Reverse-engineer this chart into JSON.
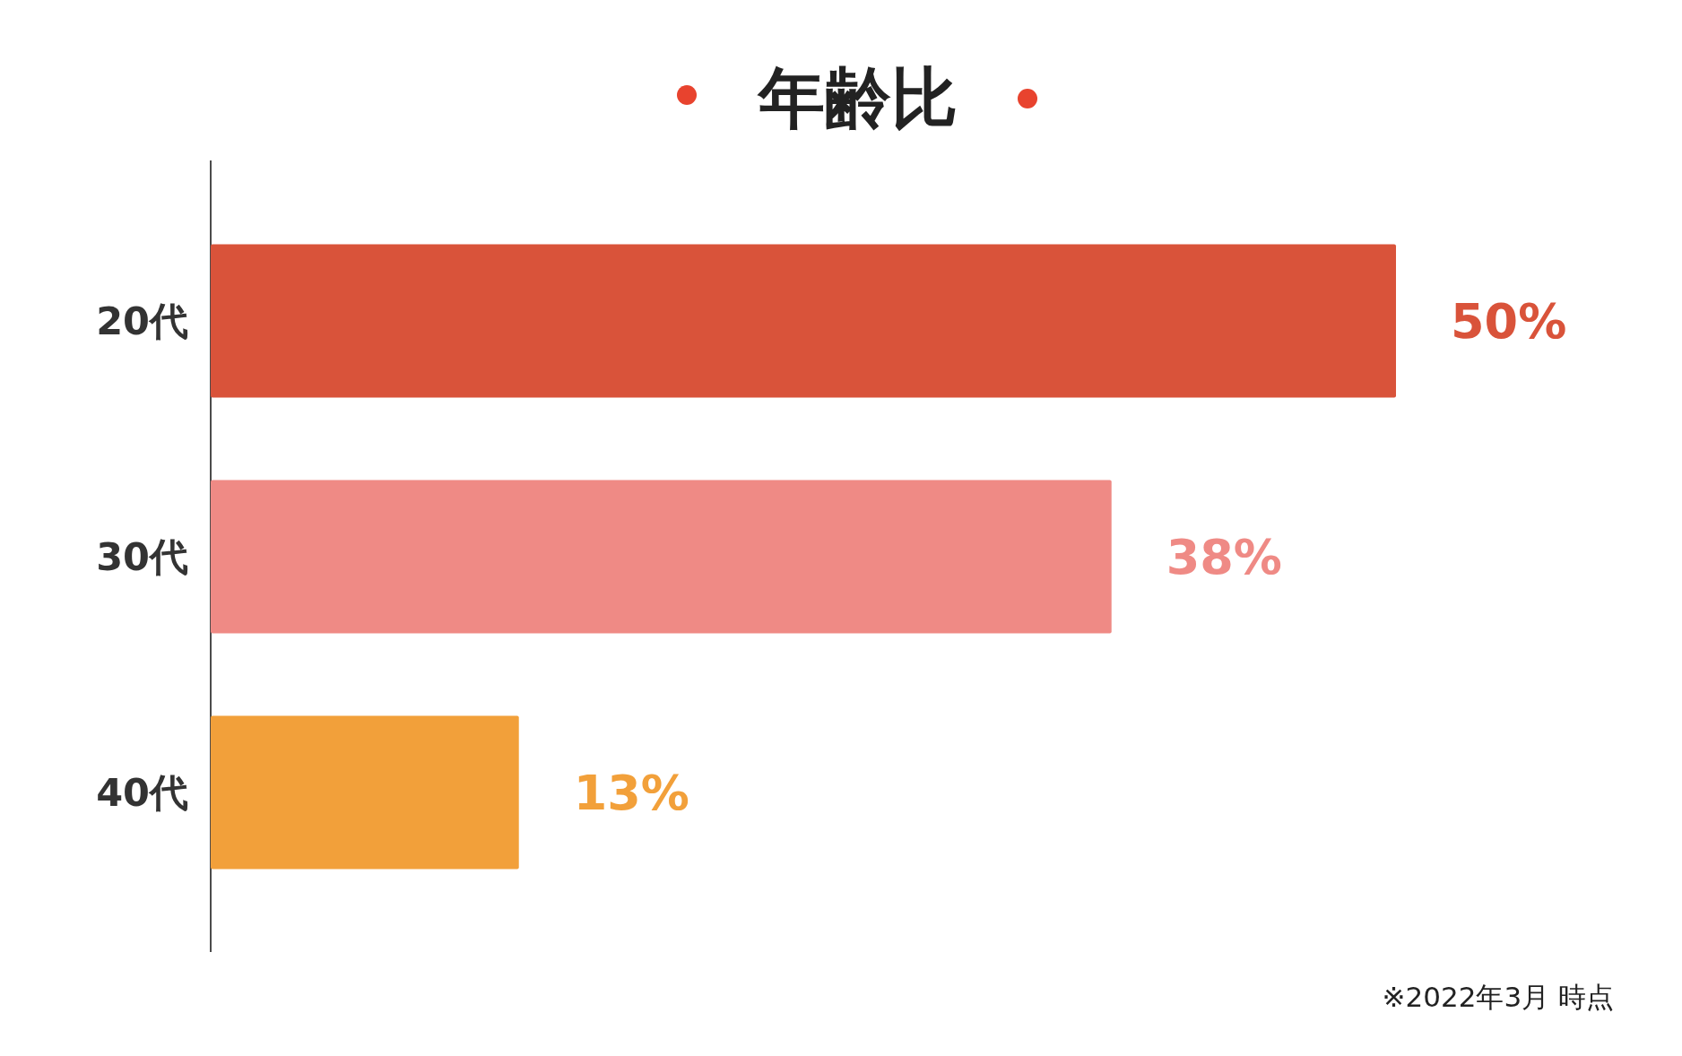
{
  "chart_data": {
    "type": "bar",
    "orientation": "horizontal",
    "title": "年齢比",
    "categories": [
      "20代",
      "30代",
      "40代"
    ],
    "values": [
      50,
      38,
      13
    ],
    "colors": [
      "#d9533a",
      "#ef8a85",
      "#f2a03a"
    ],
    "value_labels": [
      "50%",
      "38%",
      "13%"
    ],
    "annotations": [
      "※2022年3月 時点"
    ]
  }
}
